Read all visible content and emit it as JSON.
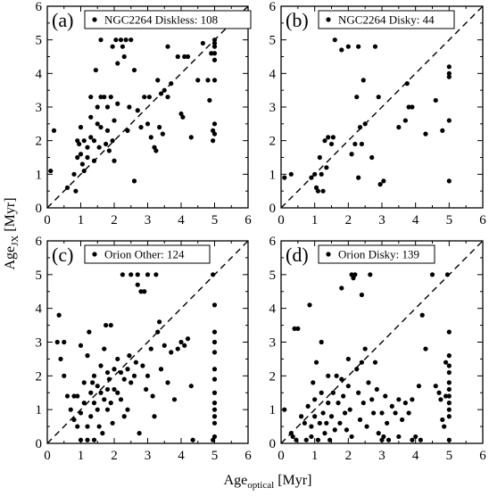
{
  "figure": {
    "ylabel_main": "Age",
    "ylabel_sub": "JX",
    "ylabel_unit": " [Myr]",
    "xlabel_main": "Age",
    "xlabel_sub": "optical",
    "xlabel_unit": " [Myr]"
  },
  "colors": {
    "points": "#000000",
    "frame": "#000000",
    "diagonal": "#000000",
    "background": "#ffffff"
  },
  "chart_data": [
    {
      "type": "scatter",
      "panel_label": "(a)",
      "legend": "NGC2264 Diskless: 108",
      "xlim": [
        0,
        6
      ],
      "ylim": [
        0,
        6
      ],
      "xticks": [
        "0",
        "1",
        "2",
        "3",
        "4",
        "5",
        "6"
      ],
      "yticks": [
        "0",
        "1",
        "2",
        "3",
        "4",
        "5",
        "6"
      ],
      "reference_line": "y = x (dashed)",
      "points": [
        [
          0.1,
          1.1
        ],
        [
          0.2,
          2.3
        ],
        [
          0.6,
          0.6
        ],
        [
          0.8,
          1.0
        ],
        [
          0.85,
          0.5
        ],
        [
          0.9,
          2.0
        ],
        [
          0.9,
          1.5
        ],
        [
          0.95,
          1.9
        ],
        [
          1.0,
          2.4
        ],
        [
          1.0,
          1.6
        ],
        [
          1.05,
          1.3
        ],
        [
          1.1,
          2.0
        ],
        [
          1.1,
          1.1
        ],
        [
          1.2,
          1.8
        ],
        [
          1.2,
          1.5
        ],
        [
          1.3,
          2.1
        ],
        [
          1.3,
          3.3
        ],
        [
          1.3,
          2.7
        ],
        [
          1.4,
          1.4
        ],
        [
          1.4,
          2.0
        ],
        [
          1.45,
          4.1
        ],
        [
          1.5,
          3.0
        ],
        [
          1.5,
          2.5
        ],
        [
          1.55,
          1.8
        ],
        [
          1.6,
          5.0
        ],
        [
          1.6,
          3.3
        ],
        [
          1.6,
          2.4
        ],
        [
          1.7,
          3.3
        ],
        [
          1.75,
          1.9
        ],
        [
          1.8,
          3.0
        ],
        [
          1.8,
          2.3
        ],
        [
          1.85,
          1.7
        ],
        [
          1.9,
          3.3
        ],
        [
          1.95,
          4.8
        ],
        [
          1.95,
          2.0
        ],
        [
          2.0,
          2.6
        ],
        [
          2.0,
          1.4
        ],
        [
          2.05,
          5.0
        ],
        [
          2.1,
          3.1
        ],
        [
          2.1,
          4.3
        ],
        [
          2.2,
          5.0
        ],
        [
          2.25,
          4.8
        ],
        [
          2.3,
          4.5
        ],
        [
          2.35,
          5.0
        ],
        [
          2.4,
          2.3
        ],
        [
          2.45,
          3.0
        ],
        [
          2.5,
          5.0
        ],
        [
          2.6,
          4.1
        ],
        [
          2.6,
          0.8
        ],
        [
          2.7,
          2.9
        ],
        [
          2.8,
          2.4
        ],
        [
          2.9,
          3.3
        ],
        [
          3.0,
          2.5
        ],
        [
          3.05,
          3.3
        ],
        [
          3.1,
          2.1
        ],
        [
          3.2,
          1.8
        ],
        [
          3.25,
          1.7
        ],
        [
          3.3,
          3.8
        ],
        [
          3.35,
          2.4
        ],
        [
          3.4,
          3.4
        ],
        [
          3.45,
          2.2
        ],
        [
          3.5,
          3.5
        ],
        [
          3.6,
          4.8
        ],
        [
          3.6,
          3.3
        ],
        [
          3.7,
          3.7
        ],
        [
          3.9,
          4.5
        ],
        [
          4.0,
          2.8
        ],
        [
          4.05,
          2.7
        ],
        [
          4.1,
          4.5
        ],
        [
          4.2,
          4.5
        ],
        [
          4.3,
          2.1
        ],
        [
          4.5,
          3.8
        ],
        [
          4.65,
          4.9
        ],
        [
          4.8,
          3.8
        ],
        [
          4.85,
          3.2
        ],
        [
          4.9,
          4.6
        ],
        [
          4.95,
          2.3
        ],
        [
          4.95,
          2.0
        ],
        [
          5.0,
          5.0
        ],
        [
          5.0,
          4.9
        ],
        [
          5.0,
          4.8
        ],
        [
          5.0,
          4.6
        ],
        [
          5.0,
          4.4
        ],
        [
          5.0,
          3.8
        ],
        [
          5.0,
          2.5
        ],
        [
          5.0,
          2.2
        ]
      ]
    },
    {
      "type": "scatter",
      "panel_label": "(b)",
      "legend": "NGC2264 Disky: 44",
      "xlim": [
        0,
        6
      ],
      "ylim": [
        0,
        6
      ],
      "xticks": [
        "0",
        "1",
        "2",
        "3",
        "4",
        "5",
        "6"
      ],
      "yticks": [
        "0",
        "1",
        "2",
        "3",
        "4",
        "5",
        "6"
      ],
      "reference_line": "y = x (dashed)",
      "points": [
        [
          0.1,
          0.9
        ],
        [
          0.3,
          1.0
        ],
        [
          0.9,
          0.9
        ],
        [
          1.0,
          1.0
        ],
        [
          1.05,
          0.6
        ],
        [
          1.1,
          0.5
        ],
        [
          1.15,
          1.5
        ],
        [
          1.2,
          1.0
        ],
        [
          1.25,
          0.5
        ],
        [
          1.3,
          2.0
        ],
        [
          1.35,
          1.2
        ],
        [
          1.4,
          2.1
        ],
        [
          1.5,
          1.9
        ],
        [
          1.55,
          2.1
        ],
        [
          1.6,
          5.0
        ],
        [
          1.8,
          4.7
        ],
        [
          2.0,
          4.8
        ],
        [
          2.1,
          1.6
        ],
        [
          2.2,
          1.9
        ],
        [
          2.25,
          3.3
        ],
        [
          2.3,
          4.8
        ],
        [
          2.3,
          0.9
        ],
        [
          2.35,
          2.4
        ],
        [
          2.4,
          1.9
        ],
        [
          2.45,
          3.8
        ],
        [
          2.5,
          2.5
        ],
        [
          2.7,
          1.5
        ],
        [
          2.8,
          4.8
        ],
        [
          2.9,
          3.3
        ],
        [
          2.95,
          0.7
        ],
        [
          3.05,
          0.8
        ],
        [
          3.5,
          2.4
        ],
        [
          3.7,
          2.6
        ],
        [
          3.75,
          3.7
        ],
        [
          3.8,
          3.0
        ],
        [
          3.9,
          3.0
        ],
        [
          4.3,
          2.2
        ],
        [
          4.6,
          3.2
        ],
        [
          4.8,
          2.3
        ],
        [
          5.0,
          4.2
        ],
        [
          5.0,
          4.0
        ],
        [
          5.0,
          3.9
        ],
        [
          5.0,
          2.6
        ],
        [
          5.0,
          0.8
        ]
      ]
    },
    {
      "type": "scatter",
      "panel_label": "(c)",
      "legend": "Orion Other: 124",
      "xlim": [
        0,
        6
      ],
      "ylim": [
        0,
        6
      ],
      "xticks": [
        "0",
        "1",
        "2",
        "3",
        "4",
        "5",
        "6"
      ],
      "yticks": [
        "0",
        "1",
        "2",
        "3",
        "4",
        "5",
        "6"
      ],
      "reference_line": "y = x (dashed)",
      "points": [
        [
          0.3,
          3.0
        ],
        [
          0.35,
          3.8
        ],
        [
          0.4,
          2.5
        ],
        [
          0.5,
          3.0
        ],
        [
          0.5,
          2.0
        ],
        [
          0.6,
          1.4
        ],
        [
          0.7,
          1.0
        ],
        [
          0.8,
          1.4
        ],
        [
          0.8,
          0.7
        ],
        [
          0.9,
          1.4
        ],
        [
          0.9,
          0.5
        ],
        [
          1.0,
          2.9
        ],
        [
          1.0,
          0.9
        ],
        [
          1.0,
          0.1
        ],
        [
          1.1,
          1.8
        ],
        [
          1.1,
          1.2
        ],
        [
          1.2,
          2.6
        ],
        [
          1.2,
          0.5
        ],
        [
          1.2,
          0.1
        ],
        [
          1.25,
          3.3
        ],
        [
          1.3,
          1.5
        ],
        [
          1.3,
          0.8
        ],
        [
          1.35,
          1.8
        ],
        [
          1.4,
          2.0
        ],
        [
          1.4,
          1.2
        ],
        [
          1.4,
          0.1
        ],
        [
          1.5,
          1.7
        ],
        [
          1.5,
          1.0
        ],
        [
          1.55,
          0.5
        ],
        [
          1.6,
          2.3
        ],
        [
          1.6,
          1.5
        ],
        [
          1.65,
          0.3
        ],
        [
          1.7,
          1.3
        ],
        [
          1.7,
          2.8
        ],
        [
          1.75,
          3.5
        ],
        [
          1.8,
          1.6
        ],
        [
          1.8,
          2.1
        ],
        [
          1.8,
          1.0
        ],
        [
          1.85,
          1.9
        ],
        [
          1.9,
          3.5
        ],
        [
          1.9,
          1.2
        ],
        [
          1.95,
          0.6
        ],
        [
          2.0,
          2.2
        ],
        [
          2.0,
          1.6
        ],
        [
          2.1,
          2.5
        ],
        [
          2.1,
          1.5
        ],
        [
          2.2,
          2.1
        ],
        [
          2.2,
          1.3
        ],
        [
          2.25,
          5.0
        ],
        [
          2.3,
          1.9
        ],
        [
          2.3,
          0.8
        ],
        [
          2.4,
          2.2
        ],
        [
          2.4,
          1.0
        ],
        [
          2.45,
          2.6
        ],
        [
          2.5,
          5.0
        ],
        [
          2.5,
          1.8
        ],
        [
          2.6,
          2.0
        ],
        [
          2.65,
          2.4
        ],
        [
          2.7,
          4.7
        ],
        [
          2.7,
          5.0
        ],
        [
          2.75,
          0.3
        ],
        [
          2.8,
          4.5
        ],
        [
          2.85,
          2.3
        ],
        [
          2.9,
          4.5
        ],
        [
          2.95,
          1.6
        ],
        [
          3.0,
          5.0
        ],
        [
          3.0,
          2.0
        ],
        [
          3.1,
          2.8
        ],
        [
          3.15,
          1.4
        ],
        [
          3.2,
          0.8
        ],
        [
          3.25,
          5.0
        ],
        [
          3.3,
          3.3
        ],
        [
          3.35,
          3.6
        ],
        [
          3.4,
          2.2
        ],
        [
          3.5,
          2.9
        ],
        [
          3.6,
          1.8
        ],
        [
          3.7,
          2.7
        ],
        [
          3.8,
          1.3
        ],
        [
          3.9,
          2.8
        ],
        [
          4.0,
          3.0
        ],
        [
          4.1,
          2.9
        ],
        [
          4.2,
          3.1
        ],
        [
          4.3,
          1.7
        ],
        [
          4.35,
          0.1
        ],
        [
          4.95,
          5.0
        ],
        [
          5.0,
          4.1
        ],
        [
          5.0,
          3.3
        ],
        [
          5.0,
          3.0
        ],
        [
          5.0,
          2.7
        ],
        [
          5.0,
          2.2
        ],
        [
          5.0,
          1.9
        ],
        [
          5.0,
          1.5
        ],
        [
          5.0,
          1.2
        ],
        [
          5.0,
          1.0
        ],
        [
          5.0,
          0.8
        ],
        [
          5.0,
          0.6
        ],
        [
          5.0,
          0.2
        ],
        [
          4.95,
          0.1
        ]
      ]
    },
    {
      "type": "scatter",
      "panel_label": "(d)",
      "legend": "Orion Disky: 139",
      "xlim": [
        0,
        6
      ],
      "ylim": [
        0,
        6
      ],
      "xticks": [
        "0",
        "1",
        "2",
        "3",
        "4",
        "5",
        "6"
      ],
      "yticks": [
        "0",
        "1",
        "2",
        "3",
        "4",
        "5",
        "6"
      ],
      "reference_line": "y = x (dashed)",
      "points": [
        [
          0.1,
          1.0
        ],
        [
          0.3,
          0.3
        ],
        [
          0.35,
          0.2
        ],
        [
          0.4,
          3.4
        ],
        [
          0.45,
          0.1
        ],
        [
          0.5,
          3.4
        ],
        [
          0.6,
          0.8
        ],
        [
          0.7,
          0.6
        ],
        [
          0.75,
          0.1
        ],
        [
          0.8,
          1.1
        ],
        [
          0.85,
          4.1
        ],
        [
          0.9,
          0.5
        ],
        [
          0.9,
          0.2
        ],
        [
          0.95,
          1.8
        ],
        [
          1.0,
          0.8
        ],
        [
          1.0,
          1.3
        ],
        [
          1.05,
          2.4
        ],
        [
          1.1,
          0.1
        ],
        [
          1.15,
          0.6
        ],
        [
          1.2,
          3.0
        ],
        [
          1.2,
          1.5
        ],
        [
          1.25,
          0.9
        ],
        [
          1.3,
          0.3
        ],
        [
          1.35,
          0.6
        ],
        [
          1.4,
          2.0
        ],
        [
          1.4,
          1.2
        ],
        [
          1.45,
          0.1
        ],
        [
          1.5,
          0.8
        ],
        [
          1.55,
          1.5
        ],
        [
          1.6,
          0.4
        ],
        [
          1.65,
          2.0
        ],
        [
          1.7,
          1.2
        ],
        [
          1.75,
          0.6
        ],
        [
          1.8,
          4.6
        ],
        [
          1.8,
          1.9
        ],
        [
          1.85,
          1.4
        ],
        [
          1.9,
          0.9
        ],
        [
          1.95,
          0.4
        ],
        [
          2.0,
          2.5
        ],
        [
          2.0,
          1.7
        ],
        [
          2.05,
          1.0
        ],
        [
          2.1,
          5.0
        ],
        [
          2.1,
          0.2
        ],
        [
          2.15,
          4.9
        ],
        [
          2.2,
          5.0
        ],
        [
          2.25,
          2.2
        ],
        [
          2.3,
          1.5
        ],
        [
          2.35,
          0.7
        ],
        [
          2.4,
          4.4
        ],
        [
          2.4,
          2.4
        ],
        [
          2.45,
          1.2
        ],
        [
          2.5,
          2.8
        ],
        [
          2.55,
          0.5
        ],
        [
          2.6,
          1.8
        ],
        [
          2.65,
          5.0
        ],
        [
          2.7,
          1.3
        ],
        [
          2.75,
          0.9
        ],
        [
          2.8,
          2.4
        ],
        [
          2.85,
          1.6
        ],
        [
          2.9,
          0.3
        ],
        [
          3.0,
          0.9
        ],
        [
          3.0,
          0.1
        ],
        [
          3.05,
          0.2
        ],
        [
          3.1,
          1.4
        ],
        [
          3.15,
          0.6
        ],
        [
          3.2,
          0.1
        ],
        [
          3.3,
          1.1
        ],
        [
          3.4,
          0.9
        ],
        [
          3.5,
          1.3
        ],
        [
          3.5,
          0.2
        ],
        [
          3.6,
          0.7
        ],
        [
          3.7,
          1.2
        ],
        [
          3.8,
          0.9
        ],
        [
          3.9,
          1.3
        ],
        [
          3.9,
          0.1
        ],
        [
          4.0,
          0.2
        ],
        [
          4.1,
          1.7
        ],
        [
          4.15,
          0.1
        ],
        [
          4.2,
          3.8
        ],
        [
          4.3,
          2.8
        ],
        [
          4.5,
          5.0
        ],
        [
          4.6,
          1.7
        ],
        [
          4.7,
          1.5
        ],
        [
          4.75,
          1.3
        ],
        [
          4.8,
          0.7
        ],
        [
          4.85,
          0.5
        ],
        [
          4.9,
          2.4
        ],
        [
          4.9,
          1.4
        ],
        [
          5.0,
          3.3
        ],
        [
          5.0,
          2.6
        ],
        [
          5.0,
          2.3
        ],
        [
          5.0,
          2.1
        ],
        [
          5.0,
          1.8
        ],
        [
          5.0,
          1.6
        ],
        [
          5.0,
          1.4
        ],
        [
          5.0,
          1.2
        ],
        [
          5.0,
          1.0
        ],
        [
          5.0,
          0.8
        ],
        [
          5.0,
          0.1
        ],
        [
          4.95,
          5.0
        ]
      ]
    }
  ]
}
